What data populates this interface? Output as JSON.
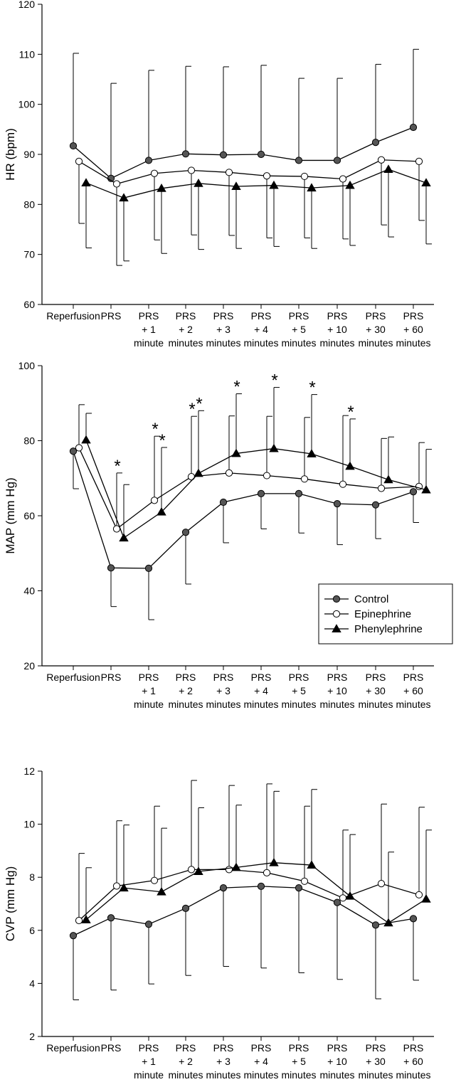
{
  "chart_data": [
    {
      "type": "line",
      "ylabel": "HR (bpm)",
      "ylim": [
        60,
        120
      ],
      "yticks": [
        60,
        70,
        80,
        90,
        100,
        110,
        120
      ],
      "categories": [
        [
          "Reperfusion"
        ],
        [
          "PRS"
        ],
        [
          "PRS",
          "+ 1",
          "minute"
        ],
        [
          "PRS",
          "+ 2",
          "minutes"
        ],
        [
          "PRS",
          "+ 3",
          "minutes"
        ],
        [
          "PRS",
          "+ 4",
          "minutes"
        ],
        [
          "PRS",
          "+ 5",
          "minutes"
        ],
        [
          "PRS",
          "+ 10",
          "minutes"
        ],
        [
          "PRS",
          "+ 30",
          "minutes"
        ],
        [
          "PRS",
          "+ 60",
          "minutes"
        ]
      ],
      "series": [
        {
          "name": "Control",
          "marker": "filled-circle",
          "values": [
            91.7,
            85.2,
            88.8,
            90.1,
            89.9,
            90.0,
            88.8,
            88.8,
            92.4,
            95.4
          ],
          "sd": [
            18.5,
            19.0,
            18.0,
            17.5,
            17.6,
            17.8,
            16.4,
            16.4,
            15.6,
            15.6
          ],
          "error_dir": "up"
        },
        {
          "name": "Epinephrine",
          "marker": "open-circle",
          "values": [
            88.6,
            84.1,
            86.2,
            86.8,
            86.4,
            85.7,
            85.6,
            85.1,
            88.9,
            88.6
          ],
          "sd": [
            12.4,
            16.3,
            13.3,
            12.9,
            12.6,
            12.4,
            12.3,
            12.0,
            13.0,
            11.8
          ],
          "error_dir": "down"
        },
        {
          "name": "Phenylephrine",
          "marker": "filled-triangle",
          "values": [
            84.3,
            81.3,
            83.2,
            84.2,
            83.6,
            83.8,
            83.3,
            83.8,
            87.0,
            84.3
          ],
          "sd": [
            13.0,
            12.6,
            13.0,
            13.2,
            12.4,
            12.2,
            12.1,
            12.0,
            13.5,
            12.2
          ],
          "error_dir": "down"
        }
      ],
      "stars": []
    },
    {
      "type": "line",
      "ylabel": "MAP (mm Hg)",
      "ylim": [
        20,
        100
      ],
      "yticks": [
        20,
        40,
        60,
        80,
        100
      ],
      "categories": [
        [
          "Reperfusion"
        ],
        [
          "PRS"
        ],
        [
          "PRS",
          "+ 1",
          "minute"
        ],
        [
          "PRS",
          "+ 2",
          "minutes"
        ],
        [
          "PRS",
          "+ 3",
          "minutes"
        ],
        [
          "PRS",
          "+ 4",
          "minutes"
        ],
        [
          "PRS",
          "+ 5",
          "minutes"
        ],
        [
          "PRS",
          "+ 10",
          "minutes"
        ],
        [
          "PRS",
          "+ 30",
          "minutes"
        ],
        [
          "PRS",
          "+ 60",
          "minutes"
        ]
      ],
      "legend": {
        "position": "lower-right",
        "entries": [
          "Control",
          "Epinephrine",
          "Phenylephrine"
        ]
      },
      "series": [
        {
          "name": "Control",
          "marker": "filled-circle",
          "values": [
            77.2,
            46.1,
            46.0,
            55.6,
            63.6,
            65.9,
            65.9,
            63.2,
            62.9,
            66.4
          ],
          "sd": [
            10.0,
            10.3,
            13.7,
            13.8,
            10.8,
            9.4,
            10.5,
            10.9,
            9.0,
            8.2
          ],
          "error_dir": "down"
        },
        {
          "name": "Epinephrine",
          "marker": "open-circle",
          "values": [
            78.1,
            56.5,
            64.1,
            70.4,
            71.4,
            70.7,
            69.8,
            68.4,
            67.3,
            67.8
          ],
          "sd": [
            11.5,
            14.9,
            17.1,
            16.1,
            15.2,
            15.8,
            16.4,
            18.3,
            13.3,
            11.7
          ],
          "error_dir": "up"
        },
        {
          "name": "Phenylephrine",
          "marker": "filled-triangle",
          "values": [
            80.2,
            54.1,
            61.0,
            71.3,
            76.6,
            77.9,
            76.5,
            73.2,
            69.6,
            66.9
          ],
          "sd": [
            7.1,
            14.2,
            17.2,
            16.7,
            15.9,
            16.3,
            15.8,
            12.6,
            11.4,
            10.8
          ],
          "error_dir": "up"
        }
      ],
      "stars": [
        {
          "category": 1,
          "series": "Epinephrine"
        },
        {
          "category": 2,
          "series": "Epinephrine"
        },
        {
          "category": 2,
          "series": "Phenylephrine"
        },
        {
          "category": 3,
          "series": "Epinephrine"
        },
        {
          "category": 3,
          "series": "Phenylephrine"
        },
        {
          "category": 4,
          "series": "Phenylephrine"
        },
        {
          "category": 5,
          "series": "Phenylephrine"
        },
        {
          "category": 6,
          "series": "Phenylephrine"
        },
        {
          "category": 7,
          "series": "Phenylephrine"
        }
      ],
      "star_symbol": "*"
    },
    {
      "type": "line",
      "ylabel": "CVP (mm Hg)",
      "ylim": [
        2,
        12
      ],
      "yticks": [
        2,
        4,
        6,
        8,
        10,
        12
      ],
      "categories": [
        [
          "Reperfusion"
        ],
        [
          "PRS"
        ],
        [
          "PRS",
          "+ 1",
          "minute"
        ],
        [
          "PRS",
          "+ 2",
          "minutes"
        ],
        [
          "PRS",
          "+ 3",
          "minutes"
        ],
        [
          "PRS",
          "+ 4",
          "minutes"
        ],
        [
          "PRS",
          "+ 5",
          "minutes"
        ],
        [
          "PRS",
          "+ 10",
          "minutes"
        ],
        [
          "PRS",
          "+ 30",
          "minutes"
        ],
        [
          "PRS",
          "+ 60",
          "minutes"
        ]
      ],
      "series": [
        {
          "name": "Control",
          "marker": "filled-circle",
          "values": [
            5.8,
            6.47,
            6.23,
            6.83,
            7.6,
            7.66,
            7.6,
            7.05,
            6.2,
            6.44
          ],
          "sd": [
            2.42,
            2.72,
            2.25,
            2.53,
            2.96,
            3.08,
            3.2,
            2.9,
            2.78,
            2.32
          ],
          "error_dir": "down"
        },
        {
          "name": "Epinephrine",
          "marker": "open-circle",
          "values": [
            6.37,
            7.67,
            7.88,
            8.29,
            8.29,
            8.17,
            7.85,
            7.22,
            7.76,
            7.34
          ],
          "sd": [
            2.53,
            2.46,
            2.8,
            3.36,
            3.17,
            3.35,
            2.83,
            2.56,
            3.0,
            3.3
          ],
          "error_dir": "up"
        },
        {
          "name": "Phenylephrine",
          "marker": "filled-triangle",
          "values": [
            6.4,
            7.6,
            7.45,
            8.22,
            8.37,
            8.55,
            8.46,
            7.29,
            6.28,
            7.18
          ],
          "sd": [
            1.96,
            2.37,
            2.4,
            2.4,
            2.35,
            2.69,
            2.85,
            2.32,
            2.67,
            2.6
          ],
          "error_dir": "up"
        }
      ],
      "stars": []
    }
  ]
}
